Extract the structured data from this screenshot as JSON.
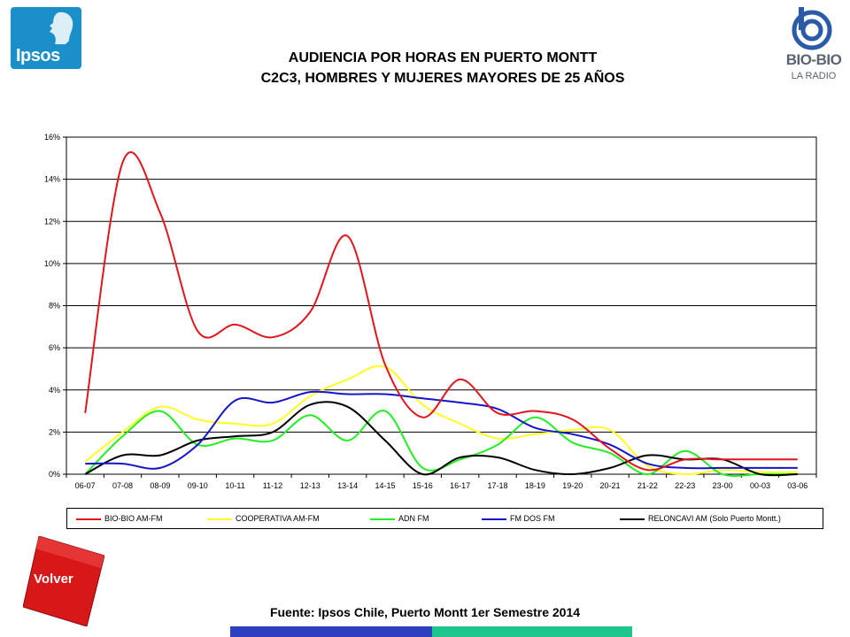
{
  "logos": {
    "left_text": "Ipsos",
    "right_text": "BIO-BIO",
    "right_subtext": "LA RADIO"
  },
  "title": {
    "line1": "AUDIENCIA POR HORAS EN PUERTO MONTT",
    "line2": "C2C3, HOMBRES Y MUJERES MAYORES DE 25 AÑOS"
  },
  "chart_data": {
    "type": "line",
    "categories": [
      "06-07",
      "07-08",
      "08-09",
      "09-10",
      "10-11",
      "11-12",
      "12-13",
      "13-14",
      "14-15",
      "15-16",
      "16-17",
      "17-18",
      "18-19",
      "19-20",
      "20-21",
      "21-22",
      "22-23",
      "23-00",
      "00-03",
      "03-06"
    ],
    "y_ticks": [
      "0%",
      "2%",
      "4%",
      "6%",
      "8%",
      "10%",
      "12%",
      "14%",
      "16%"
    ],
    "ylim": [
      0,
      16
    ],
    "grid": true,
    "legend_position": "bottom",
    "series": [
      {
        "name": "BIO-BIO AM-FM",
        "color": "#e0161c",
        "values": [
          2.9,
          14.8,
          12.4,
          6.8,
          7.1,
          6.5,
          7.7,
          11.3,
          5.2,
          2.7,
          4.5,
          2.9,
          3.0,
          2.6,
          1.2,
          0.2,
          0.7,
          0.7,
          0.7,
          0.7
        ]
      },
      {
        "name": "COOPERATIVA AM-FM",
        "color": "#ffff22",
        "values": [
          0.6,
          2.0,
          3.2,
          2.6,
          2.4,
          2.4,
          3.7,
          4.5,
          5.1,
          3.3,
          2.4,
          1.7,
          1.9,
          2.1,
          2.1,
          0.4,
          0.0,
          0.2,
          0.1,
          0.1
        ]
      },
      {
        "name": "ADN FM",
        "color": "#22ee22",
        "values": [
          0.0,
          1.8,
          3.0,
          1.4,
          1.7,
          1.6,
          2.8,
          1.6,
          3.0,
          0.3,
          0.7,
          1.4,
          2.7,
          1.5,
          1.0,
          0.0,
          1.1,
          0.0,
          0.0,
          0.0
        ]
      },
      {
        "name": "FM DOS FM",
        "color": "#1515c8",
        "values": [
          0.5,
          0.5,
          0.3,
          1.4,
          3.5,
          3.4,
          3.9,
          3.8,
          3.8,
          3.6,
          3.4,
          3.1,
          2.2,
          1.9,
          1.4,
          0.5,
          0.3,
          0.3,
          0.3,
          0.3
        ]
      },
      {
        "name": "RELONCAVI AM (Solo Puerto Montt.)",
        "color": "#000000",
        "values": [
          0.0,
          0.9,
          0.9,
          1.6,
          1.8,
          2.0,
          3.3,
          3.2,
          1.6,
          0.0,
          0.8,
          0.8,
          0.2,
          0.0,
          0.3,
          0.9,
          0.7,
          0.7,
          0.0,
          0.0
        ]
      }
    ]
  },
  "volver_label": "Volver",
  "source": "Fuente: Ipsos Chile, Puerto Montt 1er Semestre 2014"
}
